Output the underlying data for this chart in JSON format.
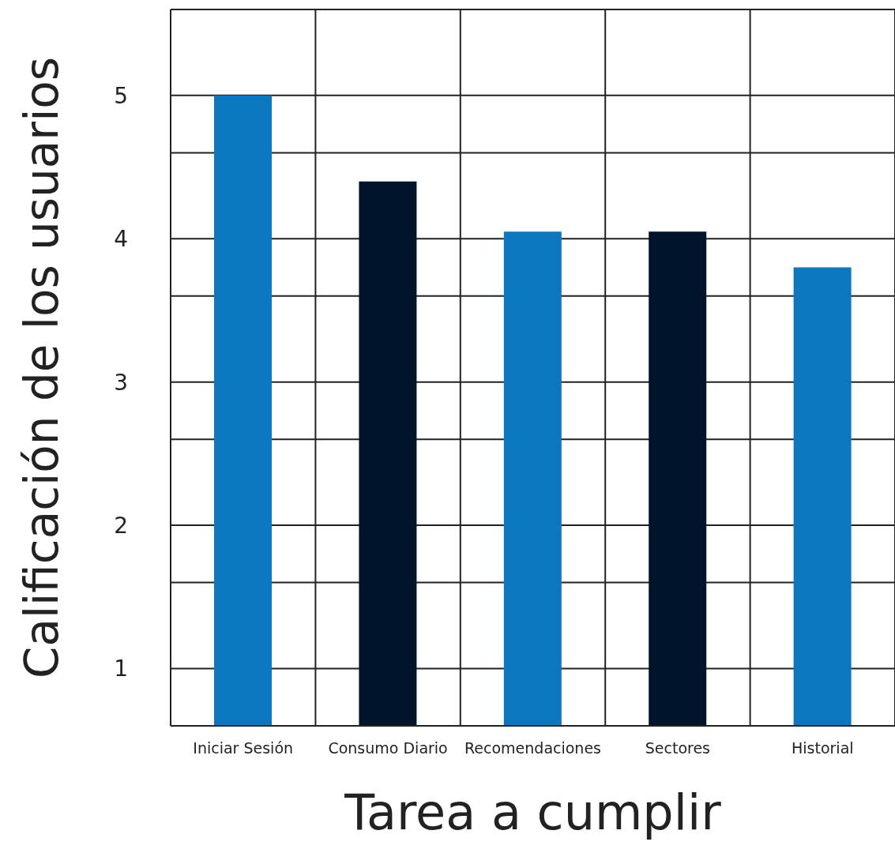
{
  "chart_data": {
    "type": "bar",
    "xlabel": "Tarea a cumplir",
    "ylabel": "Calificación de los usuarios",
    "categories": [
      "Iniciar Sesión",
      "Consumo Diario",
      "Recomendaciones",
      "Sectores",
      "Historial"
    ],
    "values": [
      5.0,
      4.4,
      4.05,
      4.05,
      3.8
    ],
    "colors": [
      "#0b77be",
      "#00142b",
      "#0b77be",
      "#00142b",
      "#0b77be"
    ],
    "ylim": [
      0.6,
      5.6
    ],
    "yticks": [
      {
        "value": 0.6,
        "label": null
      },
      1,
      {
        "value": 1.6,
        "label": null
      },
      2,
      {
        "value": 2.6,
        "label": null
      },
      3,
      {
        "value": 3.6,
        "label": null
      },
      4,
      {
        "value": 4.6,
        "label": null
      },
      5,
      {
        "value": 5.6,
        "label": null
      }
    ],
    "grid": true
  }
}
